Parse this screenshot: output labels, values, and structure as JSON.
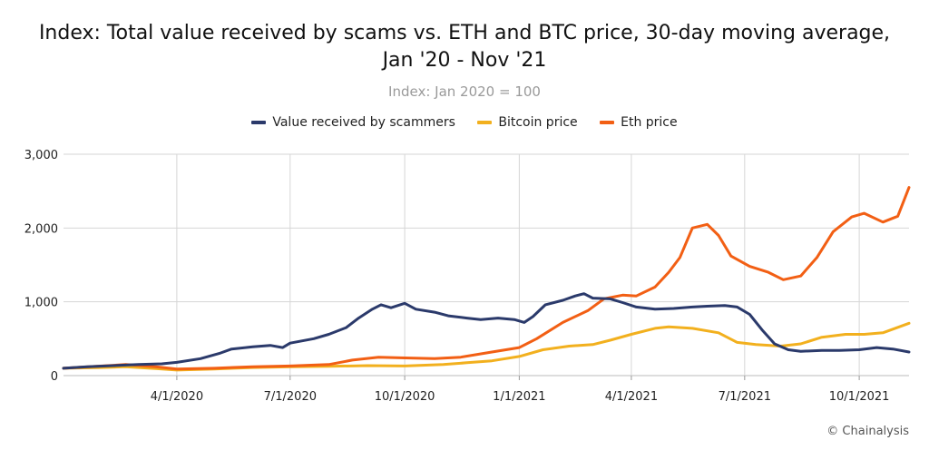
{
  "title_line1": "Index: Total value received by scams vs. ETH and BTC price, 30-day moving average,",
  "title_line2": "Jan '20 - Nov '21",
  "subtitle": "Index: Jan 2020 = 100",
  "footer": "© Chainalysis",
  "colors": {
    "scammers": "#2b3a6b",
    "bitcoin": "#f2b01e",
    "eth": "#f25f14",
    "grid": "#d6d6d6"
  },
  "chart_data": {
    "type": "line",
    "title": "Index: Total value received by scams vs. ETH and BTC price, 30-day moving average, Jan '20 - Nov '21",
    "subtitle": "Index: Jan 2020 = 100",
    "xlabel": "",
    "ylabel": "",
    "x_ticks": [
      "4/1/2020",
      "7/1/2020",
      "10/1/2020",
      "1/1/2021",
      "4/1/2021",
      "7/1/2021",
      "10/1/2021"
    ],
    "y_ticks": [
      "0",
      "1,000",
      "2,000",
      "3,000"
    ],
    "ylim": [
      0,
      3000
    ],
    "xlim": [
      "2020-01-01",
      "2021-11-10"
    ],
    "grid": true,
    "legend": "top-center",
    "series": [
      {
        "name": "Value received by scammers",
        "color": "#2b3a6b",
        "points": [
          [
            "2020-01-01",
            100
          ],
          [
            "2020-01-20",
            120
          ],
          [
            "2020-02-10",
            135
          ],
          [
            "2020-03-01",
            150
          ],
          [
            "2020-03-20",
            160
          ],
          [
            "2020-04-01",
            180
          ],
          [
            "2020-04-20",
            230
          ],
          [
            "2020-05-05",
            300
          ],
          [
            "2020-05-15",
            360
          ],
          [
            "2020-06-01",
            390
          ],
          [
            "2020-06-15",
            410
          ],
          [
            "2020-06-25",
            380
          ],
          [
            "2020-07-01",
            440
          ],
          [
            "2020-07-20",
            500
          ],
          [
            "2020-08-01",
            560
          ],
          [
            "2020-08-15",
            650
          ],
          [
            "2020-08-25",
            780
          ],
          [
            "2020-09-05",
            900
          ],
          [
            "2020-09-12",
            960
          ],
          [
            "2020-09-20",
            920
          ],
          [
            "2020-10-01",
            980
          ],
          [
            "2020-10-10",
            900
          ],
          [
            "2020-10-25",
            860
          ],
          [
            "2020-11-05",
            810
          ],
          [
            "2020-11-20",
            780
          ],
          [
            "2020-12-01",
            760
          ],
          [
            "2020-12-15",
            780
          ],
          [
            "2020-12-28",
            760
          ],
          [
            "2021-01-05",
            720
          ],
          [
            "2021-01-12",
            800
          ],
          [
            "2021-01-22",
            960
          ],
          [
            "2021-02-05",
            1020
          ],
          [
            "2021-02-15",
            1080
          ],
          [
            "2021-02-22",
            1110
          ],
          [
            "2021-03-01",
            1050
          ],
          [
            "2021-03-15",
            1040
          ],
          [
            "2021-03-25",
            990
          ],
          [
            "2021-04-05",
            930
          ],
          [
            "2021-04-20",
            900
          ],
          [
            "2021-05-05",
            910
          ],
          [
            "2021-05-20",
            930
          ],
          [
            "2021-06-01",
            940
          ],
          [
            "2021-06-15",
            950
          ],
          [
            "2021-06-25",
            930
          ],
          [
            "2021-07-05",
            830
          ],
          [
            "2021-07-15",
            620
          ],
          [
            "2021-07-25",
            430
          ],
          [
            "2021-08-05",
            350
          ],
          [
            "2021-08-15",
            330
          ],
          [
            "2021-09-01",
            340
          ],
          [
            "2021-09-15",
            340
          ],
          [
            "2021-10-01",
            350
          ],
          [
            "2021-10-15",
            380
          ],
          [
            "2021-10-28",
            360
          ],
          [
            "2021-11-10",
            320
          ]
        ]
      },
      {
        "name": "Bitcoin price",
        "color": "#f2b01e",
        "points": [
          [
            "2020-01-01",
            100
          ],
          [
            "2020-02-01",
            110
          ],
          [
            "2020-02-20",
            120
          ],
          [
            "2020-03-15",
            95
          ],
          [
            "2020-04-01",
            75
          ],
          [
            "2020-05-01",
            90
          ],
          [
            "2020-06-01",
            110
          ],
          [
            "2020-07-01",
            120
          ],
          [
            "2020-08-01",
            125
          ],
          [
            "2020-09-01",
            135
          ],
          [
            "2020-10-01",
            130
          ],
          [
            "2020-11-01",
            150
          ],
          [
            "2020-11-20",
            175
          ],
          [
            "2020-12-10",
            200
          ],
          [
            "2021-01-01",
            260
          ],
          [
            "2021-01-20",
            350
          ],
          [
            "2021-02-10",
            400
          ],
          [
            "2021-03-01",
            420
          ],
          [
            "2021-03-15",
            480
          ],
          [
            "2021-04-01",
            560
          ],
          [
            "2021-04-20",
            640
          ],
          [
            "2021-05-01",
            660
          ],
          [
            "2021-05-20",
            640
          ],
          [
            "2021-06-10",
            580
          ],
          [
            "2021-06-25",
            450
          ],
          [
            "2021-07-10",
            420
          ],
          [
            "2021-07-30",
            400
          ],
          [
            "2021-08-15",
            430
          ],
          [
            "2021-09-01",
            520
          ],
          [
            "2021-09-20",
            560
          ],
          [
            "2021-10-05",
            560
          ],
          [
            "2021-10-20",
            580
          ],
          [
            "2021-11-10",
            710
          ]
        ]
      },
      {
        "name": "Eth price",
        "color": "#f25f14",
        "points": [
          [
            "2020-01-01",
            100
          ],
          [
            "2020-02-01",
            130
          ],
          [
            "2020-02-20",
            150
          ],
          [
            "2020-03-15",
            120
          ],
          [
            "2020-04-01",
            90
          ],
          [
            "2020-05-01",
            100
          ],
          [
            "2020-06-01",
            120
          ],
          [
            "2020-07-01",
            130
          ],
          [
            "2020-08-01",
            150
          ],
          [
            "2020-08-20",
            210
          ],
          [
            "2020-09-10",
            250
          ],
          [
            "2020-10-01",
            240
          ],
          [
            "2020-10-25",
            230
          ],
          [
            "2020-11-15",
            250
          ],
          [
            "2020-12-10",
            320
          ],
          [
            "2021-01-01",
            380
          ],
          [
            "2021-01-15",
            500
          ],
          [
            "2021-02-05",
            720
          ],
          [
            "2021-02-25",
            880
          ],
          [
            "2021-03-10",
            1040
          ],
          [
            "2021-03-25",
            1090
          ],
          [
            "2021-04-05",
            1080
          ],
          [
            "2021-04-20",
            1200
          ],
          [
            "2021-05-01",
            1400
          ],
          [
            "2021-05-10",
            1600
          ],
          [
            "2021-05-20",
            2000
          ],
          [
            "2021-06-01",
            2050
          ],
          [
            "2021-06-10",
            1900
          ],
          [
            "2021-06-20",
            1620
          ],
          [
            "2021-07-05",
            1480
          ],
          [
            "2021-07-20",
            1400
          ],
          [
            "2021-08-01",
            1300
          ],
          [
            "2021-08-15",
            1350
          ],
          [
            "2021-08-28",
            1600
          ],
          [
            "2021-09-10",
            1950
          ],
          [
            "2021-09-25",
            2150
          ],
          [
            "2021-10-05",
            2200
          ],
          [
            "2021-10-20",
            2080
          ],
          [
            "2021-11-01",
            2160
          ],
          [
            "2021-11-10",
            2550
          ]
        ]
      }
    ]
  }
}
